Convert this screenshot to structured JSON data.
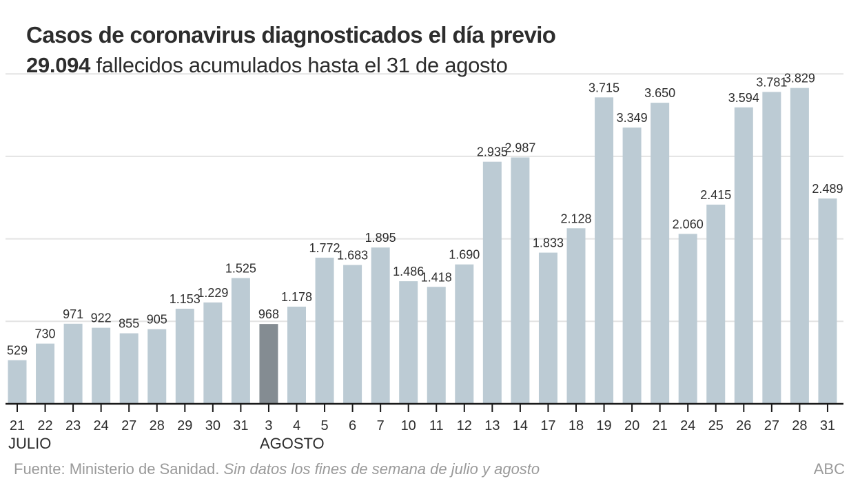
{
  "chart_data": {
    "type": "bar",
    "title": "Casos de coronavirus diagnosticados el día previo",
    "subtitle_bold": "29.094",
    "subtitle_rest": " fallecidos acumulados hasta el 31 de agosto",
    "xlabel": "",
    "ylabel": "",
    "ylim": [
      0,
      4000
    ],
    "grid": true,
    "gridlines": [
      1000,
      2000,
      3000,
      4000
    ],
    "categories": [
      "21",
      "22",
      "23",
      "24",
      "27",
      "28",
      "29",
      "30",
      "31",
      "3",
      "4",
      "5",
      "6",
      "7",
      "10",
      "11",
      "12",
      "13",
      "14",
      "17",
      "18",
      "19",
      "20",
      "21",
      "24",
      "25",
      "26",
      "27",
      "28",
      "31"
    ],
    "values": [
      529,
      730,
      971,
      922,
      855,
      905,
      1153,
      1229,
      1525,
      968,
      1178,
      1772,
      1683,
      1895,
      1486,
      1418,
      1690,
      2935,
      2987,
      1833,
      2128,
      3715,
      3349,
      3650,
      2060,
      2415,
      3594,
      3781,
      3829,
      2489
    ],
    "value_labels": [
      "529",
      "730",
      "971",
      "922",
      "855",
      "905",
      "1.153",
      "1.229",
      "1.525",
      "968",
      "1.178",
      "1.772",
      "1.683",
      "1.895",
      "1.486",
      "1.418",
      "1.690",
      "2.935",
      "2.987",
      "1.833",
      "2.128",
      "3.715",
      "3.349",
      "3.650",
      "2.060",
      "2.415",
      "3.594",
      "3.781",
      "3.829",
      "2.489"
    ],
    "highlight_index": 9,
    "month_labels": [
      {
        "text": "JULIO",
        "at_index": 0
      },
      {
        "text": "AGOSTO",
        "at_index": 9
      }
    ],
    "colors": {
      "bar": "#bccbd4",
      "bar_highlight": "#848c92",
      "grid": "#e3e3e3",
      "axis": "#1a1a1a",
      "text": "#2d2d2d",
      "footer": "#9a9a9a"
    }
  },
  "footer": {
    "source": "Fuente: Ministerio de Sanidad.",
    "note": "Sin datos los fines de semana de julio y agosto",
    "brand": "ABC"
  }
}
